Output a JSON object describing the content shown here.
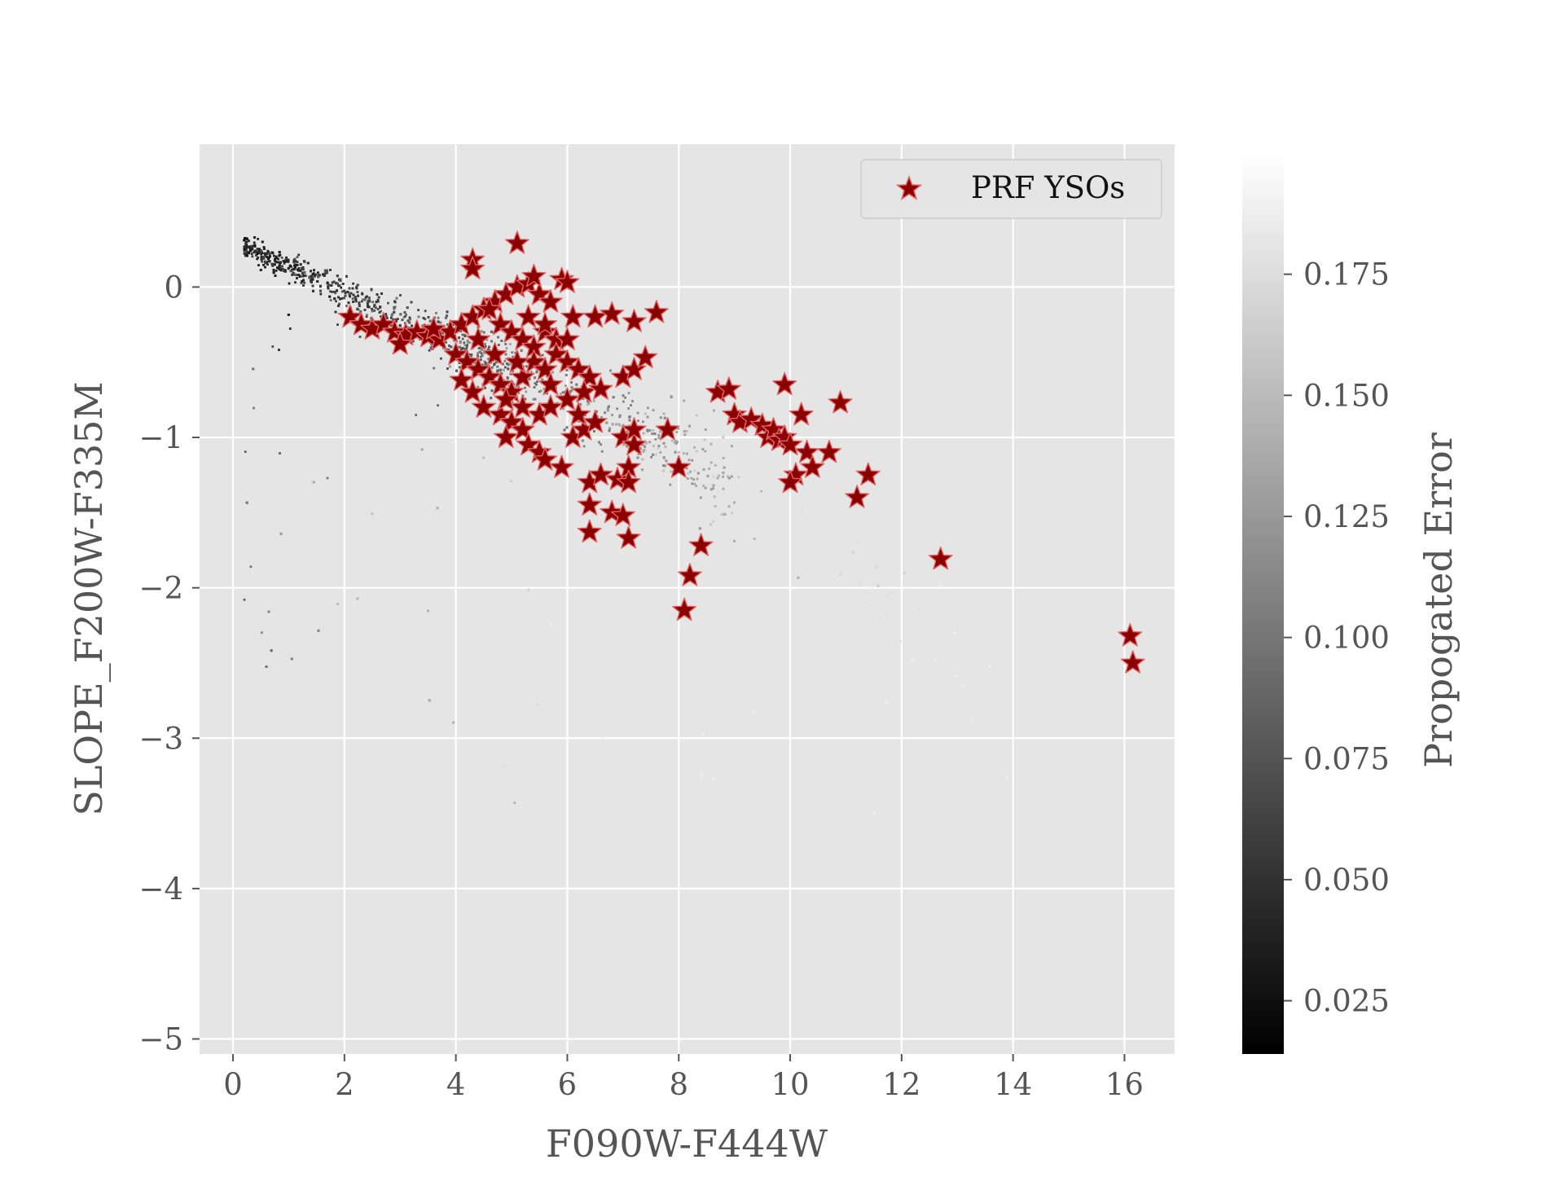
{
  "chart_data": {
    "type": "scatter",
    "title": "",
    "xlabel": "F090W-F444W",
    "ylabel": "SLOPE_F200W-F335M",
    "xlim": [
      -0.6,
      16.9
    ],
    "ylim": [
      -5.1,
      0.95
    ],
    "x_ticks": [
      0,
      2,
      4,
      6,
      8,
      10,
      12,
      14,
      16
    ],
    "y_ticks": [
      0,
      -1,
      -2,
      -3,
      -4,
      -5
    ],
    "x_tick_labels": [
      "0",
      "2",
      "4",
      "6",
      "8",
      "10",
      "12",
      "14",
      "16"
    ],
    "y_tick_labels": [
      "0",
      "−1",
      "−2",
      "−3",
      "−4",
      "−5"
    ],
    "grid": true,
    "style": "ggplot",
    "background_color": "#e5e5e5",
    "grid_color": "#ffffff",
    "legend": {
      "location": "upper right",
      "entries": [
        "PRF YSOs"
      ]
    },
    "colorbar": {
      "label": "Propogated Error",
      "cmap": "gray",
      "range": [
        0.014,
        0.2
      ],
      "ticks": [
        0.025,
        0.05,
        0.075,
        0.1,
        0.125,
        0.15,
        0.175
      ],
      "tick_labels": [
        "0.025",
        "0.050",
        "0.075",
        "0.100",
        "0.125",
        "0.150",
        "0.175"
      ]
    },
    "series": [
      {
        "name": "PRF YSOs",
        "marker": "star",
        "color": "#8b0000",
        "edge_color": "#e06666",
        "points": [
          [
            2.1,
            -0.2
          ],
          [
            2.3,
            -0.25
          ],
          [
            2.5,
            -0.28
          ],
          [
            2.7,
            -0.25
          ],
          [
            2.9,
            -0.3
          ],
          [
            3.1,
            -0.32
          ],
          [
            3.3,
            -0.3
          ],
          [
            3.5,
            -0.33
          ],
          [
            3.7,
            -0.35
          ],
          [
            3.9,
            -0.3
          ],
          [
            4.1,
            -0.25
          ],
          [
            4.3,
            -0.2
          ],
          [
            4.5,
            -0.15
          ],
          [
            4.7,
            -0.1
          ],
          [
            4.9,
            -0.05
          ],
          [
            5.1,
            0.0
          ],
          [
            5.3,
            0.02
          ],
          [
            5.5,
            -0.05
          ],
          [
            5.7,
            -0.1
          ],
          [
            5.9,
            0.05
          ],
          [
            6.0,
            0.03
          ],
          [
            5.1,
            0.29
          ],
          [
            4.3,
            0.18
          ],
          [
            4.3,
            0.12
          ],
          [
            5.4,
            0.07
          ],
          [
            4.6,
            -0.15
          ],
          [
            4.8,
            -0.25
          ],
          [
            5.0,
            -0.3
          ],
          [
            5.2,
            -0.35
          ],
          [
            5.4,
            -0.4
          ],
          [
            5.6,
            -0.3
          ],
          [
            5.8,
            -0.35
          ],
          [
            6.1,
            -0.2
          ],
          [
            6.5,
            -0.2
          ],
          [
            6.8,
            -0.18
          ],
          [
            7.2,
            -0.23
          ],
          [
            7.6,
            -0.17
          ],
          [
            4.0,
            -0.45
          ],
          [
            4.2,
            -0.5
          ],
          [
            4.4,
            -0.55
          ],
          [
            4.6,
            -0.6
          ],
          [
            4.8,
            -0.65
          ],
          [
            5.0,
            -0.7
          ],
          [
            5.2,
            -0.6
          ],
          [
            5.4,
            -0.5
          ],
          [
            5.6,
            -0.55
          ],
          [
            5.8,
            -0.45
          ],
          [
            6.0,
            -0.5
          ],
          [
            6.2,
            -0.55
          ],
          [
            6.4,
            -0.6
          ],
          [
            4.5,
            -0.8
          ],
          [
            4.8,
            -0.85
          ],
          [
            5.0,
            -0.9
          ],
          [
            5.2,
            -0.95
          ],
          [
            5.5,
            -0.85
          ],
          [
            5.7,
            -0.8
          ],
          [
            6.0,
            -0.75
          ],
          [
            6.3,
            -0.7
          ],
          [
            6.6,
            -0.68
          ],
          [
            7.0,
            -0.6
          ],
          [
            7.2,
            -0.55
          ],
          [
            7.4,
            -0.47
          ],
          [
            4.9,
            -1.0
          ],
          [
            5.3,
            -1.05
          ],
          [
            5.5,
            -1.1
          ],
          [
            5.6,
            -1.15
          ],
          [
            5.9,
            -1.2
          ],
          [
            6.1,
            -1.0
          ],
          [
            6.3,
            -0.95
          ],
          [
            7.0,
            -1.0
          ],
          [
            7.2,
            -1.05
          ],
          [
            7.2,
            -0.95
          ],
          [
            7.8,
            -0.95
          ],
          [
            6.4,
            -1.3
          ],
          [
            6.6,
            -1.25
          ],
          [
            6.9,
            -1.28
          ],
          [
            7.1,
            -1.2
          ],
          [
            7.1,
            -1.3
          ],
          [
            6.4,
            -1.45
          ],
          [
            6.8,
            -1.5
          ],
          [
            7.0,
            -1.52
          ],
          [
            7.1,
            -1.67
          ],
          [
            6.4,
            -1.63
          ],
          [
            8.0,
            -1.2
          ],
          [
            8.7,
            -0.7
          ],
          [
            8.9,
            -0.68
          ],
          [
            9.0,
            -0.85
          ],
          [
            9.1,
            -0.9
          ],
          [
            9.3,
            -0.88
          ],
          [
            9.5,
            -0.92
          ],
          [
            9.6,
            -1.0
          ],
          [
            9.7,
            -0.95
          ],
          [
            9.8,
            -1.02
          ],
          [
            9.9,
            -1.0
          ],
          [
            9.9,
            -0.65
          ],
          [
            10.0,
            -1.05
          ],
          [
            10.2,
            -0.85
          ],
          [
            10.3,
            -1.1
          ],
          [
            10.4,
            -1.2
          ],
          [
            10.7,
            -1.1
          ],
          [
            10.9,
            -0.77
          ],
          [
            10.1,
            -1.25
          ],
          [
            10.0,
            -1.3
          ],
          [
            11.4,
            -1.25
          ],
          [
            11.2,
            -1.4
          ],
          [
            8.2,
            -1.92
          ],
          [
            8.4,
            -1.72
          ],
          [
            8.1,
            -2.15
          ],
          [
            12.7,
            -1.81
          ],
          [
            16.1,
            -2.32
          ],
          [
            16.15,
            -2.5
          ],
          [
            3.0,
            -0.38
          ],
          [
            3.6,
            -0.28
          ],
          [
            4.4,
            -0.35
          ],
          [
            4.7,
            -0.45
          ],
          [
            5.1,
            -0.5
          ],
          [
            5.3,
            -0.2
          ],
          [
            5.6,
            -0.25
          ],
          [
            6.0,
            -0.35
          ],
          [
            4.1,
            -0.62
          ],
          [
            4.3,
            -0.7
          ],
          [
            4.9,
            -0.75
          ],
          [
            5.2,
            -0.8
          ],
          [
            5.7,
            -0.65
          ],
          [
            6.2,
            -0.85
          ],
          [
            6.5,
            -0.9
          ]
        ]
      }
    ],
    "background_points": {
      "description_counts": "dense cloud of small dots colored by error value",
      "n": 3200
    }
  }
}
